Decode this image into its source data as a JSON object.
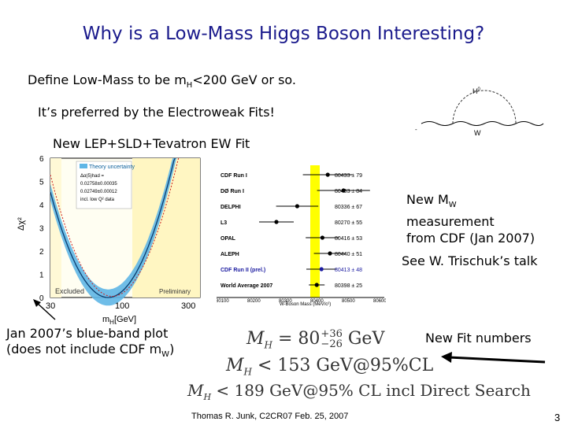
{
  "slide": {
    "title": "Why is a Low-Mass Higgs Boson Interesting?",
    "line1_pre": "Define Low-Mass to be m",
    "line1_sub": "H",
    "line1_post": "<200 GeV or so.",
    "line2": "It’s preferred by the Electroweak Fits!",
    "line3": "New LEP+SLD+Tevatron EW Fit",
    "mw_new_pre": "New M",
    "mw_new_sub": "W",
    "mw_measurement": "measurement",
    "mw_from": "from CDF (Jan 2007)",
    "see_talk": "See W. Trischuk’s talk",
    "jan_line1": "Jan 2007’s blue-band plot",
    "jan_line2_pre": "(does not include CDF m",
    "jan_line2_sub": "W",
    "jan_line2_post": ")",
    "new_fit": "New Fit numbers",
    "footer": "Thomas R. Junk, C2CR07 Feb. 25, 2007",
    "page_number": "3"
  },
  "diagram": {
    "h_label": "H",
    "h_sup": "0",
    "w_label": "W"
  },
  "blueband": {
    "ylabel": "Δχ²",
    "yticks": [
      "0",
      "1",
      "2",
      "3",
      "4",
      "5",
      "6"
    ],
    "xticks": [
      "30",
      "100",
      "300"
    ],
    "xlabel": "m",
    "xlabel_sub": "H",
    "xlabel_unit": "[GeV]",
    "legend_title": "Theory uncertainty",
    "legend_items": [
      "Δα(5)had =",
      "0.02758±0.00035",
      "0.02749±0.00012",
      "incl. low Q² data"
    ],
    "excluded": "Excluded",
    "preliminary": "Preliminary"
  },
  "mw_plot": {
    "xlabel": "W-Boson Mass (MeV/c²)",
    "xticks": [
      "80100",
      "80200",
      "80300",
      "80400",
      "80500",
      "80600"
    ],
    "rows": [
      {
        "name": "CDF Run I",
        "value": "80433 ± 79",
        "blue": false
      },
      {
        "name": "DØ Run I",
        "value": "80483 ± 84",
        "blue": false
      },
      {
        "name": "DELPHI",
        "value": "80336 ± 67",
        "blue": false
      },
      {
        "name": "L3",
        "value": "80270 ± 55",
        "blue": false
      },
      {
        "name": "OPAL",
        "value": "80416 ± 53",
        "blue": false
      },
      {
        "name": "ALEPH",
        "value": "80440 ± 51",
        "blue": false
      },
      {
        "name": "CDF Run II (prel.)",
        "value": "80413 ± 48",
        "blue": true
      },
      {
        "name": "World Average 2007",
        "value": "80398 ± 25",
        "blue": false
      }
    ]
  },
  "formulas": {
    "f1_lhs": "M",
    "f1_sub": "H",
    "f1_eq": " = 80",
    "f1_sup": "+36",
    "f1_low": "−26",
    "f1_unit": " GeV",
    "f2_lhs": "M",
    "f2_sub": "H",
    "f2_rest": " < 153 GeV@95%CL",
    "f3_lhs": "M",
    "f3_sub": "H",
    "f3_rest": " < 189 GeV@95% CL incl Direct Search"
  }
}
